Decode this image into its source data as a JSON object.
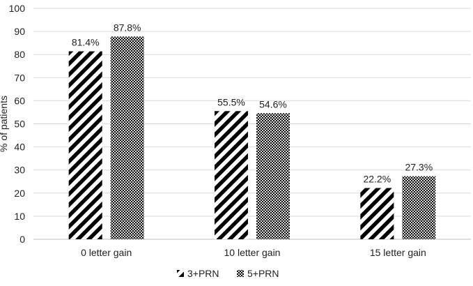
{
  "chart_data": {
    "type": "bar",
    "title": "",
    "xlabel": "",
    "ylabel": "% of patients",
    "ylim": [
      0,
      100
    ],
    "yticks": [
      0,
      10,
      20,
      30,
      40,
      50,
      60,
      70,
      80,
      90,
      100
    ],
    "grid": true,
    "legend_position": "bottom",
    "categories": [
      "0 letter gain",
      "10 letter gain",
      "15 letter gain"
    ],
    "category_prefix_marks": [
      "0",
      "1",
      "1"
    ],
    "series": [
      {
        "name": "3+PRN",
        "values": [
          81.4,
          55.5,
          22.2
        ],
        "labels": [
          "81.4%",
          "55.5%",
          "22.2%"
        ],
        "pattern": "diagonal-stripes"
      },
      {
        "name": "5+PRN",
        "values": [
          87.8,
          54.6,
          27.3
        ],
        "labels": [
          "87.8%",
          "54.6%",
          "27.3%"
        ],
        "pattern": "checkered"
      }
    ],
    "colors": {
      "bar": "#000000",
      "grid": "#d9d9d9",
      "axis": "#bfbfbf",
      "text": "#222222"
    }
  }
}
